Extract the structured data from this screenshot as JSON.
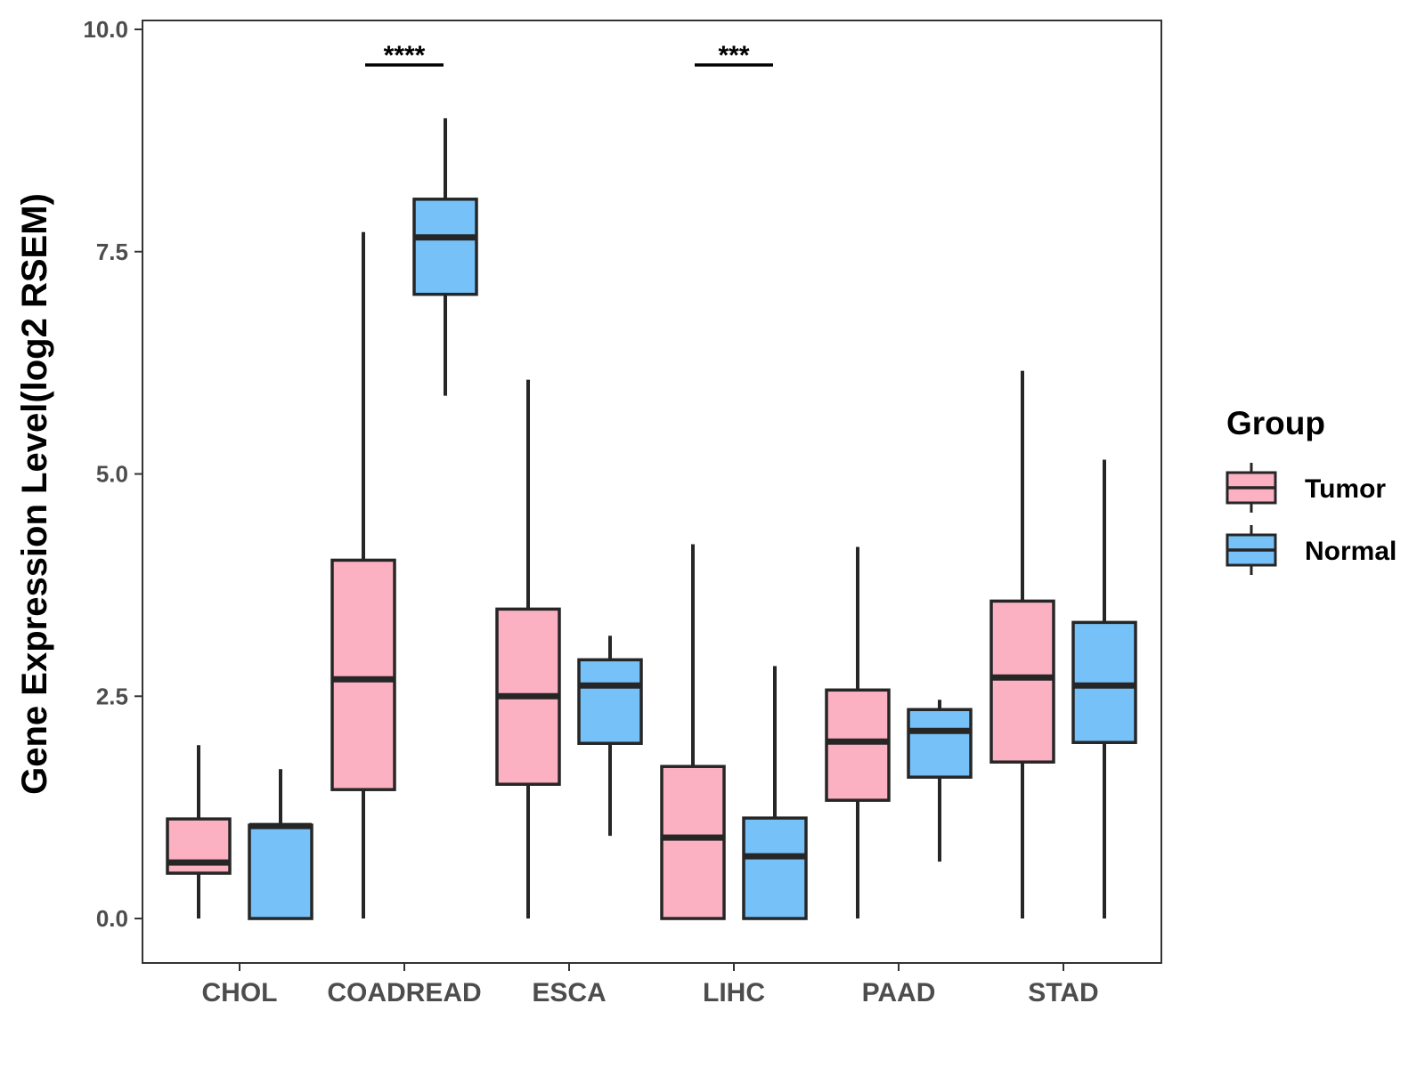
{
  "chart_data": {
    "type": "boxplot",
    "title": "",
    "xlabel": "",
    "ylabel": "Gene Expression Level(log2 RSEM)",
    "ylim": [
      -0.5,
      10.1
    ],
    "yticks": [
      0.0,
      2.5,
      5.0,
      7.5,
      10.0
    ],
    "ytick_labels": [
      "0.0",
      "2.5",
      "5.0",
      "7.5",
      "10.0"
    ],
    "categories": [
      "CHOL",
      "COADREAD",
      "ESCA",
      "LIHC",
      "PAAD",
      "STAD"
    ],
    "grid": false,
    "legend": {
      "title": "Group",
      "placement": "right",
      "entries": [
        {
          "name": "Tumor",
          "color": "#FBB1C2"
        },
        {
          "name": "Normal",
          "color": "#76C1F7"
        }
      ]
    },
    "series": [
      {
        "name": "Tumor",
        "color": "#FBB1C2",
        "boxes": [
          {
            "min": 0.0,
            "q1": 0.51,
            "median": 0.63,
            "q3": 1.12,
            "max": 1.95
          },
          {
            "min": 0.0,
            "q1": 1.45,
            "median": 2.69,
            "q3": 4.03,
            "max": 7.72
          },
          {
            "min": 0.0,
            "q1": 1.51,
            "median": 2.5,
            "q3": 3.48,
            "max": 6.06
          },
          {
            "min": 0.0,
            "q1": 0.0,
            "median": 0.91,
            "q3": 1.71,
            "max": 4.21
          },
          {
            "min": 0.0,
            "q1": 1.33,
            "median": 1.99,
            "q3": 2.57,
            "max": 4.18
          },
          {
            "min": 0.0,
            "q1": 1.76,
            "median": 2.71,
            "q3": 3.57,
            "max": 6.16
          }
        ]
      },
      {
        "name": "Normal",
        "color": "#76C1F7",
        "boxes": [
          {
            "min": 0.0,
            "q1": 0.0,
            "median": 1.04,
            "q3": 1.05,
            "max": 1.68
          },
          {
            "min": 5.88,
            "q1": 7.02,
            "median": 7.66,
            "q3": 8.09,
            "max": 9.0
          },
          {
            "min": 0.93,
            "q1": 1.97,
            "median": 2.62,
            "q3": 2.91,
            "max": 3.18
          },
          {
            "min": 0.0,
            "q1": 0.0,
            "median": 0.7,
            "q3": 1.13,
            "max": 2.84
          },
          {
            "min": 0.64,
            "q1": 1.59,
            "median": 2.11,
            "q3": 2.35,
            "max": 2.46
          },
          {
            "min": 0.0,
            "q1": 1.98,
            "median": 2.62,
            "q3": 3.33,
            "max": 5.16
          }
        ]
      }
    ],
    "annotations": [
      {
        "category": "COADREAD",
        "label": "****",
        "y": 9.6
      },
      {
        "category": "LIHC",
        "label": "***",
        "y": 9.6
      }
    ]
  }
}
